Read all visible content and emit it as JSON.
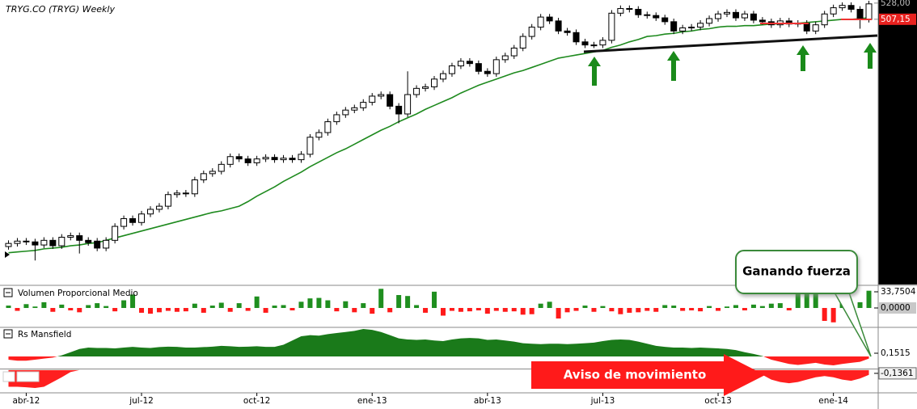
{
  "chart_data": [
    {
      "type": "candlestick",
      "title": "TRYG.CO (TRYG) Weekly",
      "categories": [
        null,
        null,
        "abr-12",
        null,
        null,
        null,
        null,
        null,
        null,
        null,
        null,
        null,
        null,
        null,
        null,
        "jul-12",
        null,
        null,
        null,
        null,
        null,
        null,
        null,
        null,
        null,
        null,
        null,
        null,
        "oct-12",
        null,
        null,
        null,
        null,
        null,
        null,
        null,
        null,
        null,
        null,
        null,
        null,
        "ene-13",
        null,
        null,
        null,
        null,
        null,
        null,
        null,
        null,
        null,
        null,
        null,
        null,
        "abr-13",
        null,
        null,
        null,
        null,
        null,
        null,
        null,
        null,
        null,
        null,
        null,
        null,
        "jul-13",
        null,
        null,
        null,
        null,
        null,
        null,
        null,
        null,
        null,
        null,
        null,
        null,
        "oct-13",
        null,
        null,
        null,
        null,
        null,
        null,
        null,
        null,
        null,
        null,
        null,
        null,
        "ene-14",
        null,
        null,
        null,
        null
      ],
      "open": [
        214,
        218,
        221,
        220,
        216,
        222,
        215,
        226,
        228,
        222,
        221,
        212,
        222,
        240,
        250,
        245,
        256,
        262,
        266,
        281,
        283,
        282,
        300,
        308,
        311,
        320,
        330,
        327,
        322,
        327,
        329,
        326,
        328,
        326,
        333,
        355,
        361,
        375,
        384,
        390,
        393,
        400,
        408,
        410,
        395,
        385,
        410,
        418,
        420,
        430,
        437,
        447,
        453,
        450,
        440,
        437,
        455,
        460,
        470,
        485,
        497,
        510,
        505,
        492,
        490,
        478,
        474,
        474,
        480,
        515,
        521,
        520,
        513,
        512,
        509,
        504,
        492,
        496,
        497,
        502,
        508,
        514,
        516,
        509,
        514,
        506,
        504,
        500,
        505,
        501,
        502,
        492,
        500,
        514,
        522,
        525,
        520,
        507
      ],
      "high": [
        222,
        225,
        225,
        224,
        226,
        226,
        230,
        232,
        232,
        226,
        225,
        226,
        244,
        254,
        254,
        260,
        266,
        270,
        285,
        287,
        287,
        304,
        312,
        315,
        324,
        334,
        334,
        331,
        331,
        333,
        333,
        332,
        332,
        337,
        359,
        365,
        379,
        388,
        394,
        397,
        404,
        412,
        414,
        414,
        399,
        440,
        422,
        424,
        434,
        441,
        451,
        457,
        457,
        454,
        444,
        459,
        464,
        474,
        489,
        501,
        514,
        514,
        509,
        496,
        494,
        482,
        478,
        484,
        519,
        525,
        525,
        524,
        517,
        516,
        513,
        508,
        500,
        501,
        506,
        512,
        518,
        520,
        520,
        518,
        518,
        510,
        508,
        509,
        509,
        506,
        506,
        504,
        518,
        526,
        529,
        529,
        524,
        531
      ],
      "low": [
        210,
        214,
        216,
        196,
        212,
        211,
        211,
        222,
        205,
        215,
        208,
        208,
        218,
        236,
        241,
        241,
        252,
        258,
        262,
        277,
        278,
        278,
        296,
        304,
        307,
        316,
        323,
        318,
        318,
        323,
        322,
        322,
        322,
        322,
        329,
        351,
        357,
        371,
        380,
        386,
        389,
        396,
        404,
        391,
        373,
        381,
        406,
        414,
        416,
        426,
        433,
        443,
        446,
        436,
        433,
        433,
        451,
        456,
        466,
        481,
        493,
        501,
        488,
        486,
        474,
        470,
        470,
        470,
        476,
        511,
        516,
        509,
        508,
        505,
        500,
        488,
        488,
        492,
        493,
        498,
        504,
        510,
        505,
        505,
        502,
        500,
        496,
        496,
        497,
        497,
        488,
        488,
        496,
        510,
        518,
        516,
        495,
        503
      ],
      "close": [
        218,
        221,
        220,
        216,
        222,
        215,
        226,
        228,
        222,
        219,
        212,
        222,
        240,
        250,
        245,
        256,
        262,
        266,
        281,
        283,
        282,
        300,
        308,
        311,
        320,
        330,
        327,
        322,
        327,
        329,
        326,
        328,
        326,
        333,
        355,
        361,
        375,
        384,
        390,
        393,
        400,
        408,
        410,
        395,
        385,
        410,
        418,
        420,
        430,
        437,
        447,
        453,
        450,
        440,
        437,
        455,
        460,
        470,
        485,
        497,
        510,
        505,
        492,
        490,
        478,
        474,
        474,
        480,
        515,
        521,
        520,
        513,
        512,
        509,
        504,
        492,
        496,
        497,
        502,
        508,
        514,
        516,
        509,
        514,
        506,
        504,
        500,
        505,
        501,
        502,
        492,
        500,
        514,
        522,
        525,
        520,
        507,
        527
      ],
      "overlay": {
        "color": "#1e8a1e",
        "values": [
          206,
          207,
          208,
          209,
          211,
          212,
          213,
          215,
          216,
          218,
          219,
          222,
          225,
          228,
          231,
          234,
          237,
          240,
          243,
          246,
          249,
          252,
          255,
          258,
          260,
          263,
          266,
          272,
          279,
          285,
          291,
          298,
          304,
          310,
          317,
          323,
          329,
          335,
          340,
          346,
          352,
          358,
          364,
          369,
          375,
          380,
          385,
          391,
          396,
          401,
          406,
          412,
          417,
          422,
          426,
          430,
          434,
          438,
          441,
          445,
          449,
          453,
          457,
          459,
          461,
          463,
          465,
          467,
          471,
          474,
          478,
          481,
          485,
          486,
          488,
          489,
          491,
          492,
          494,
          495,
          497,
          498,
          498,
          499,
          499,
          500,
          501,
          501,
          502,
          502,
          503,
          504,
          505,
          506,
          507,
          507,
          508,
          509
        ]
      },
      "colors": {
        "up": "#ffffff",
        "down": "#000000"
      },
      "ylim": [
        165,
        532
      ],
      "yticks": [
        {
          "value": 528,
          "label": "528,00"
        },
        {
          "value": 507.15,
          "label": "507,15"
        }
      ]
    },
    {
      "type": "bar",
      "title": "Volumen Proporcional Medio",
      "values": [
        5,
        -6,
        8,
        3,
        12,
        -8,
        7,
        -5,
        -9,
        6,
        10,
        4,
        -7,
        16,
        28,
        -10,
        -12,
        -9,
        -6,
        -8,
        -7,
        9,
        -10,
        5,
        11,
        -8,
        10,
        -6,
        24,
        -10,
        5,
        6,
        -5,
        13,
        20,
        21,
        16,
        -7,
        14,
        -9,
        10,
        -12,
        40,
        -9,
        27,
        25,
        6,
        -10,
        34,
        -16,
        -6,
        -8,
        -7,
        -5,
        -12,
        -6,
        -8,
        -7,
        -14,
        -13,
        9,
        13,
        -22,
        -9,
        -6,
        5,
        -8,
        4,
        -7,
        -13,
        -10,
        -9,
        -6,
        -8,
        6,
        5,
        -6,
        -5,
        -7,
        4,
        -6,
        3,
        6,
        -5,
        7,
        4,
        9,
        10,
        -5,
        30,
        31,
        33,
        -27,
        -30,
        13,
        -8,
        12,
        36
      ],
      "colors": {
        "positive": "#1f8f1f",
        "negative": "#ff1a1a"
      },
      "ylim": [
        -38.8,
        43.9
      ],
      "yticks": [
        {
          "value": 33.7504,
          "label": "33,7504"
        },
        {
          "value": 0,
          "label": "0,0000"
        }
      ]
    },
    {
      "type": "area",
      "title": "Rs Mansfield",
      "values": [
        -0.15,
        -0.2,
        -0.2,
        -0.15,
        -0.1,
        -0.05,
        0.05,
        0.2,
        0.35,
        0.42,
        0.4,
        0.4,
        0.38,
        0.42,
        0.45,
        0.42,
        0.4,
        0.44,
        0.46,
        0.45,
        0.42,
        0.42,
        0.44,
        0.46,
        0.5,
        0.48,
        0.45,
        0.46,
        0.48,
        0.45,
        0.45,
        0.55,
        0.75,
        0.95,
        1.0,
        0.98,
        1.05,
        1.1,
        1.15,
        1.2,
        1.29,
        1.25,
        1.15,
        1.0,
        0.85,
        0.8,
        0.78,
        0.8,
        0.75,
        0.72,
        0.8,
        0.85,
        0.87,
        0.85,
        0.78,
        0.8,
        0.75,
        0.7,
        0.62,
        0.6,
        0.58,
        0.6,
        0.6,
        0.58,
        0.6,
        0.62,
        0.65,
        0.72,
        0.78,
        0.8,
        0.78,
        0.7,
        0.6,
        0.5,
        0.45,
        0.42,
        0.42,
        0.4,
        0.42,
        0.4,
        0.38,
        0.35,
        0.3,
        0.2,
        0.12,
        0.02,
        -0.15,
        -0.25,
        -0.35,
        -0.4,
        -0.35,
        -0.3,
        -0.38,
        -0.42,
        -0.35,
        -0.3,
        -0.25,
        -0.1
      ],
      "colors": {
        "positive": "#1a7a1a",
        "negative": "#ff1f1f"
      },
      "ylim": [
        -0.57,
        1.33
      ],
      "yticks": [
        {
          "value": 0.1515,
          "label": "0,1515"
        }
      ]
    },
    {
      "type": "area",
      "values": [
        -0.7,
        -0.7,
        -0.72,
        -0.75,
        -0.7,
        -0.5,
        -0.3,
        -0.08,
        0,
        0,
        0,
        0,
        0,
        0,
        0,
        0,
        0,
        0,
        0,
        0,
        0,
        0,
        0,
        0,
        0,
        0,
        0,
        0,
        0,
        0,
        0,
        0,
        0,
        0,
        0,
        0,
        0,
        0,
        0,
        0,
        0,
        0,
        0,
        0,
        0,
        0,
        0,
        0,
        0,
        0,
        0,
        0,
        0,
        0,
        0,
        0,
        0,
        0,
        0,
        0,
        0,
        0,
        0,
        0,
        0,
        0,
        0,
        0,
        0,
        0,
        0,
        0,
        0,
        0,
        0,
        0,
        0,
        0,
        0,
        0,
        0,
        0,
        0,
        0,
        -0.05,
        -0.2,
        -0.4,
        -0.5,
        -0.55,
        -0.5,
        -0.4,
        -0.3,
        -0.25,
        -0.3,
        -0.4,
        -0.45,
        -0.35,
        -0.2
      ],
      "colors": {
        "positive": "#1a7a1a",
        "negative": "#ff1f1f"
      },
      "ylim": [
        -0.92,
        0.03
      ],
      "yticks": [
        {
          "value": -0.1361,
          "label": "-0,1361"
        }
      ]
    }
  ],
  "annotations": {
    "callout": "Ganando fuerza",
    "arrow": "Aviso de movimiento"
  }
}
